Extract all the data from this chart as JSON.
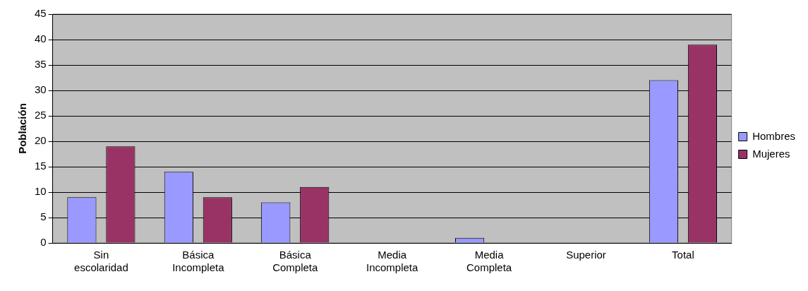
{
  "chart_data": {
    "type": "bar",
    "ylabel": "Población",
    "categories": [
      "Sin escolaridad",
      "Básica Incompleta",
      "Básica Completa",
      "Media Incompleta",
      "Media Completa",
      "Superior",
      "Total"
    ],
    "series": [
      {
        "name": "Hombres",
        "color": "#9999ff",
        "values": [
          9,
          14,
          8,
          0,
          1,
          0,
          32
        ]
      },
      {
        "name": "Mujeres",
        "color": "#993366",
        "values": [
          19,
          9,
          11,
          0,
          0,
          0,
          39
        ]
      }
    ],
    "ylim": [
      0,
      45
    ],
    "yticks": [
      0,
      5,
      10,
      15,
      20,
      25,
      30,
      35,
      40,
      45
    ],
    "grid": "y",
    "legend": "right"
  }
}
